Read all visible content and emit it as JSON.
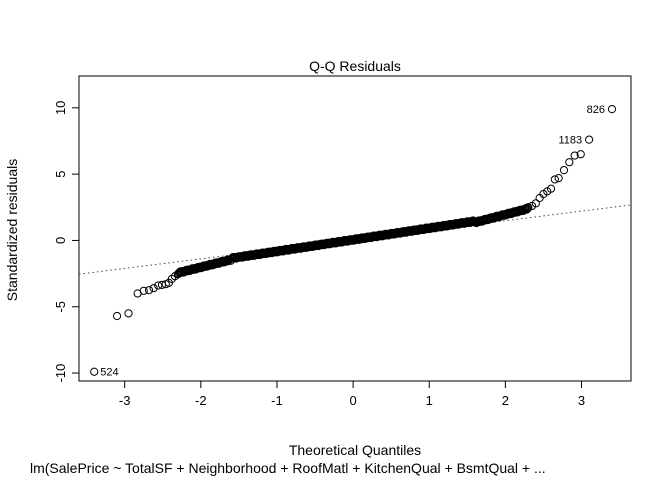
{
  "chart_data": {
    "type": "scatter",
    "title": "Q-Q Residuals",
    "xlabel": "Theoretical Quantiles",
    "ylabel": "Standardized residuals",
    "subtitle": "lm(SalePrice ~ TotalSF + Neighborhood + RoofMatl + KitchenQual + BsmtQual + ...",
    "xlim": [
      -3.6,
      3.65
    ],
    "ylim": [
      -10.6,
      12.4
    ],
    "x_ticks": [
      -3,
      -2,
      -1,
      0,
      1,
      2,
      3
    ],
    "y_ticks": [
      -10,
      -5,
      0,
      5,
      10
    ],
    "grid": false,
    "reference_line": {
      "slope": 0.72,
      "intercept": 0.05,
      "style": "dotted"
    },
    "labeled_points": [
      {
        "label": "826",
        "x": 3.4,
        "y": 9.9
      },
      {
        "label": "1183",
        "x": 3.1,
        "y": 7.6
      },
      {
        "label": "524",
        "x": -3.4,
        "y": -9.9
      }
    ],
    "points": [
      [
        -3.4,
        -9.9
      ],
      [
        -3.1,
        -5.7
      ],
      [
        -2.95,
        -5.5
      ],
      [
        -2.83,
        -4.0
      ],
      [
        -2.75,
        -3.8
      ],
      [
        -2.68,
        -3.75
      ],
      [
        -2.62,
        -3.6
      ],
      [
        -2.56,
        -3.4
      ],
      [
        -2.51,
        -3.35
      ],
      [
        -2.46,
        -3.3
      ],
      [
        -2.42,
        -3.2
      ],
      [
        -2.38,
        -2.9
      ],
      [
        -2.34,
        -2.7
      ],
      [
        -2.3,
        -2.55
      ],
      [
        2.3,
        2.5
      ],
      [
        2.35,
        2.6
      ],
      [
        2.4,
        2.8
      ],
      [
        2.45,
        3.2
      ],
      [
        2.5,
        3.5
      ],
      [
        2.55,
        3.7
      ],
      [
        2.6,
        3.9
      ],
      [
        2.65,
        4.6
      ],
      [
        2.7,
        4.7
      ],
      [
        2.77,
        5.3
      ],
      [
        2.84,
        5.9
      ],
      [
        2.91,
        6.4
      ],
      [
        2.99,
        6.5
      ],
      [
        3.1,
        7.6
      ],
      [
        3.4,
        9.9
      ]
    ],
    "dense_bands": [
      {
        "x_range": [
          -2.3,
          -1.6
        ],
        "y_range": [
          -2.45,
          -1.45
        ]
      },
      {
        "x_range": [
          -1.6,
          1.6
        ],
        "y_range": [
          -1.45,
          1.35
        ]
      },
      {
        "x_range": [
          1.6,
          2.3
        ],
        "y_range": [
          1.35,
          2.4
        ]
      }
    ]
  }
}
